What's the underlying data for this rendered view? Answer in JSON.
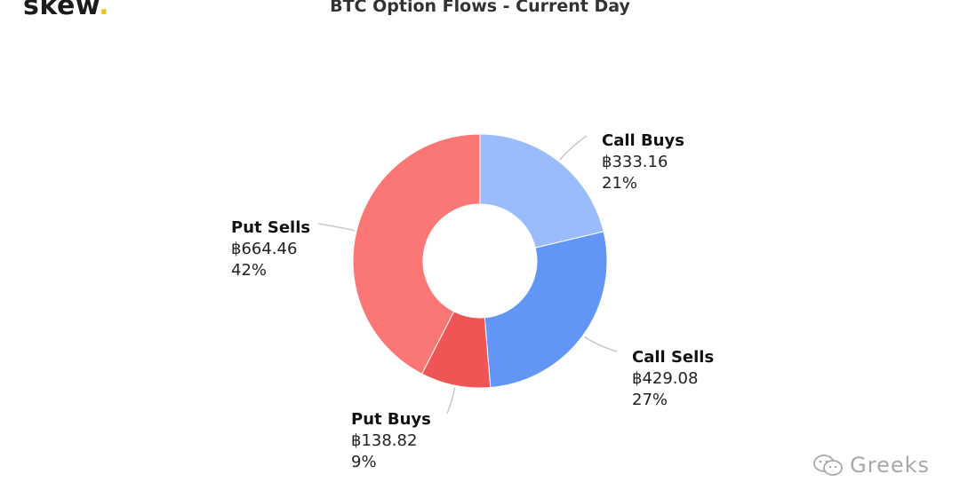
{
  "header": {
    "logo_text": "skew",
    "logo_dot": ".",
    "title": "BTC Option Flows - Current Day"
  },
  "watermark": {
    "text": "Greeks",
    "icon": "wechat-icon"
  },
  "chart_data": {
    "type": "pie",
    "variant": "donut",
    "title": "BTC Option Flows - Current Day",
    "start_angle_deg": 0,
    "direction": "clockwise",
    "slices": [
      {
        "name": "Call Buys",
        "value": 333.16,
        "value_label": "฿333.16",
        "percent_label": "21%",
        "color": "#9bbcfc"
      },
      {
        "name": "Call Sells",
        "value": 429.08,
        "value_label": "฿429.08",
        "percent_label": "27%",
        "color": "#6296f6"
      },
      {
        "name": "Put Buys",
        "value": 138.82,
        "value_label": "฿138.82",
        "percent_label": "9%",
        "color": "#f05556"
      },
      {
        "name": "Put Sells",
        "value": 664.46,
        "value_label": "฿664.46",
        "percent_label": "42%",
        "color": "#fb7776"
      }
    ]
  }
}
